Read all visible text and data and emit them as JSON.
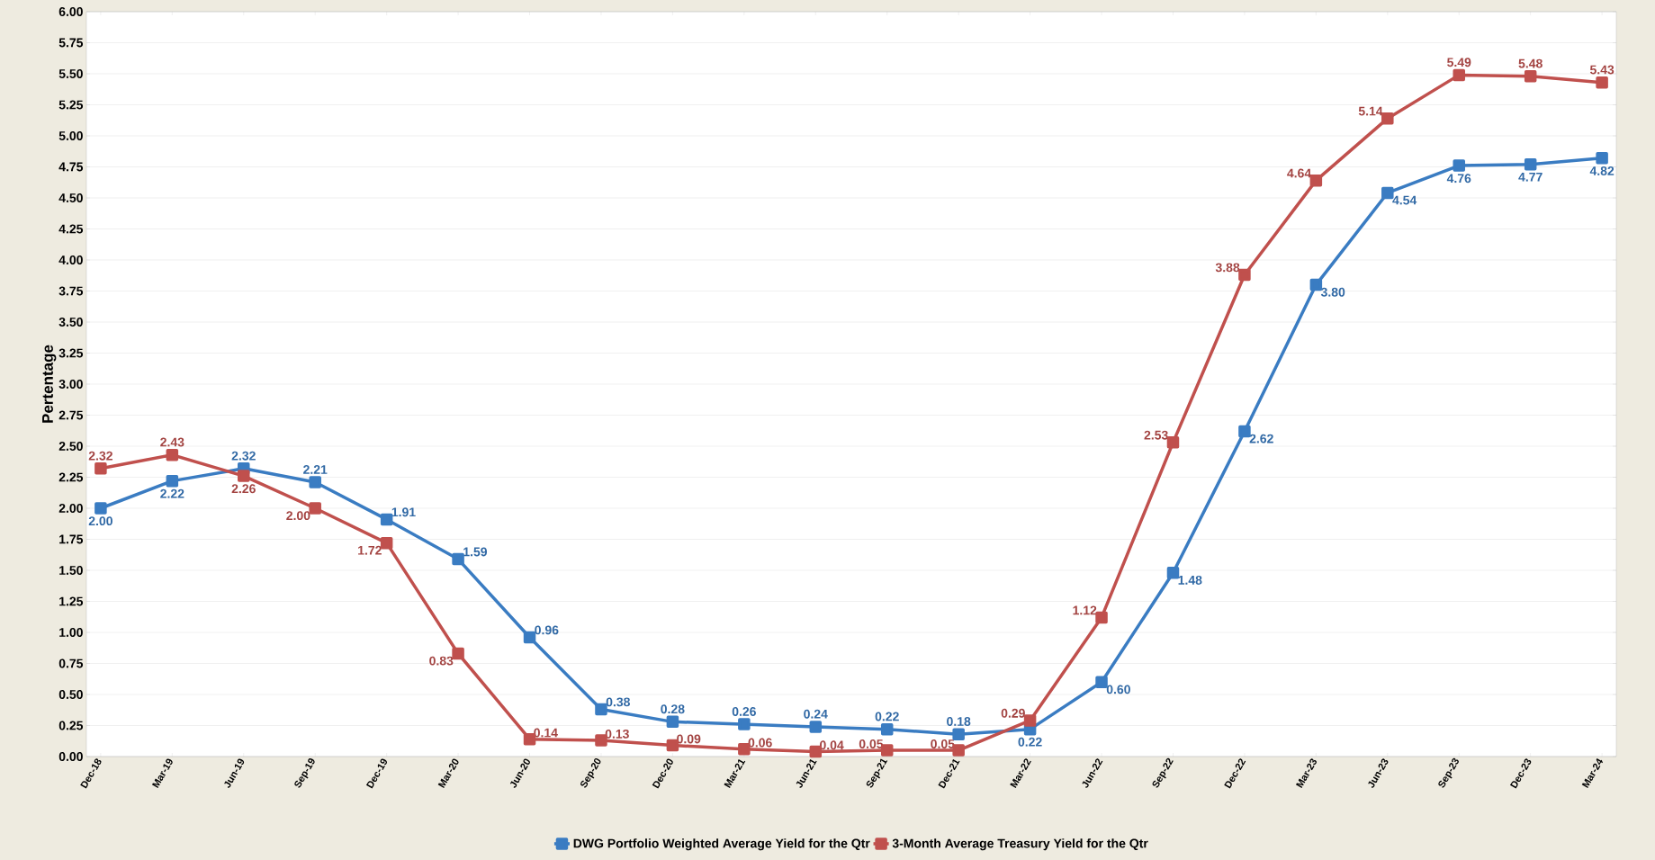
{
  "chart_data": {
    "type": "line",
    "ylabel": "Pertentage",
    "categories": [
      "Dec-18",
      "Mar-19",
      "Jun-19",
      "Sep-19",
      "Dec-19",
      "Mar-20",
      "Jun-20",
      "Sep-20",
      "Dec-20",
      "Mar-21",
      "Jun-21",
      "Sep-21",
      "Dec-21",
      "Mar-22",
      "Jun-22",
      "Sep-22",
      "Dec-22",
      "Mar-23",
      "Jun-23",
      "Sep-23",
      "Dec-23",
      "Mar-24"
    ],
    "series": [
      {
        "name": "DWG Portfolio Weighted Average Yield for the Qtr",
        "color": "#3a7cc2",
        "values": [
          2.0,
          2.22,
          2.32,
          2.21,
          1.91,
          1.59,
          0.96,
          0.38,
          0.28,
          0.26,
          0.24,
          0.22,
          0.18,
          0.22,
          0.6,
          1.48,
          2.62,
          3.8,
          4.54,
          4.76,
          4.77,
          4.82
        ],
        "value_labels": [
          "2.00",
          "2.22",
          "2.32",
          "2.21",
          "1.91",
          "1.59",
          "0.96",
          "0.38",
          "0.28",
          "0.26",
          "0.24",
          "0.22",
          "0.18",
          "0.22",
          "0.60",
          "1.48",
          "2.62",
          "3.80",
          "4.54",
          "4.76",
          "4.77",
          "4.82"
        ]
      },
      {
        "name": "3-Month Average Treasury Yield for the Qtr",
        "color": "#c0504d",
        "values": [
          2.32,
          2.43,
          2.26,
          2.0,
          1.72,
          0.83,
          0.14,
          0.13,
          0.09,
          0.06,
          0.04,
          0.05,
          0.05,
          0.29,
          1.12,
          2.53,
          3.88,
          4.64,
          5.14,
          5.49,
          5.48,
          5.43
        ],
        "value_labels": [
          "2.32",
          "2.43",
          "2.26",
          "2.00",
          "1.72",
          "0.83",
          "0.14",
          "0.13",
          "0.09",
          "0.06",
          "0.04",
          "0.05",
          "0.05",
          "0.29",
          "1.12",
          "2.53",
          "3.88",
          "4.64",
          "5.14",
          "5.49",
          "5.48",
          "5.43"
        ]
      }
    ],
    "ylim": [
      0,
      6
    ],
    "yticks": [
      {
        "value": 0,
        "label": "0.00"
      },
      {
        "value": 0.25,
        "label": "0.25"
      },
      {
        "value": 0.5,
        "label": "0.50"
      },
      {
        "value": 0.75,
        "label": "0.75"
      },
      {
        "value": 1,
        "label": "1.00"
      },
      {
        "value": 1.25,
        "label": "1.25"
      },
      {
        "value": 1.5,
        "label": "1.50"
      },
      {
        "value": 1.75,
        "label": "1.75"
      },
      {
        "value": 2,
        "label": "2.00"
      },
      {
        "value": 2.25,
        "label": "2.25"
      },
      {
        "value": 2.5,
        "label": "2.50"
      },
      {
        "value": 2.75,
        "label": "2.75"
      },
      {
        "value": 3,
        "label": "3.00"
      },
      {
        "value": 3.25,
        "label": "3.25"
      },
      {
        "value": 3.5,
        "label": "3.50"
      },
      {
        "value": 3.75,
        "label": "3.75"
      },
      {
        "value": 4,
        "label": "4.00"
      },
      {
        "value": 4.25,
        "label": "4.25"
      },
      {
        "value": 4.5,
        "label": "4.50"
      },
      {
        "value": 4.75,
        "label": "4.75"
      },
      {
        "value": 5,
        "label": "5.00"
      },
      {
        "value": 5.25,
        "label": "5.25"
      },
      {
        "value": 5.5,
        "label": "5.50"
      },
      {
        "value": 5.75,
        "label": "5.75"
      },
      {
        "value": 6,
        "label": "6.00"
      }
    ],
    "grid": "y",
    "legend": "bottom",
    "marker": "square",
    "line_style": "solid"
  }
}
